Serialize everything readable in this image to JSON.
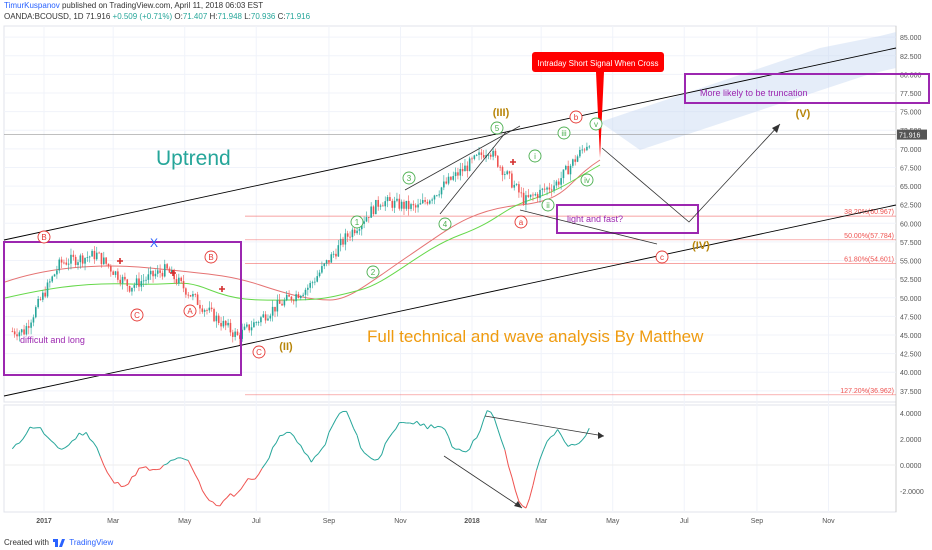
{
  "header": {
    "author": "TimurKuspanov",
    "published": "published on TradingView.com, April 11, 2018 06:03 EST",
    "symbol": "OANDA:BCOUSD, 1D",
    "last": "71.916",
    "change": "+0.509 (+0.71%)",
    "o_label": "O:",
    "o": "71.407",
    "h_label": "H:",
    "h": "71.948",
    "l_label": "L:",
    "l": "70.936",
    "c_label": "C:",
    "c": "71.916"
  },
  "footer": {
    "created_with": "Created with",
    "brand": "TradingView"
  },
  "colors": {
    "up": "#26a69a",
    "down": "#ef5350",
    "trend": "#000000",
    "purple": "#9c27b0",
    "orange": "#ef9b0f",
    "wave_green": "#4caf50",
    "wave_red": "#e53935",
    "fib": "#ef5350",
    "ma_slow": "#e57373",
    "ma_fast": "#66d84a",
    "signal_red": "#ff0000"
  },
  "chart_data": [
    {
      "type": "line",
      "title": "OANDA:BCOUSD, 1D",
      "price_axis_ticks": [
        "85.000",
        "82.500",
        "80.000",
        "77.500",
        "75.000",
        "72.500",
        "70.000",
        "67.500",
        "65.000",
        "62.500",
        "60.000",
        "57.500",
        "55.000",
        "52.500",
        "50.000",
        "47.500",
        "45.000",
        "42.500",
        "40.000",
        "37.500"
      ],
      "time_axis_ticks": [
        "2017",
        "Mar",
        "May",
        "Jul",
        "Sep",
        "Nov",
        "2018",
        "Mar",
        "May",
        "Jul",
        "Sep",
        "Nov"
      ],
      "ylim": [
        36.0,
        86.5
      ],
      "last_price_label": "71.916",
      "series": [
        {
          "name": "",
          "x": [
            "2016-12",
            "2017-01",
            "2017-02",
            "2017-03",
            "2017-04",
            "2017-05",
            "2017-06",
            "2017-07",
            "2017-08",
            "2017-09",
            "2017-10",
            "2017-11",
            "2017-12",
            "2018-01",
            "2018-02",
            "2018-03",
            "2018-04"
          ],
          "values": [
            45.5,
            54.7,
            55.8,
            51.5,
            53.8,
            49.0,
            44.8,
            48.5,
            51.5,
            58.0,
            63.0,
            62.0,
            66.0,
            70.0,
            63.0,
            65.5,
            71.9
          ]
        }
      ],
      "fib_levels": [
        {
          "label": "38.20%(60.967)",
          "value": 60.967
        },
        {
          "label": "50.00%(57.784)",
          "value": 57.784
        },
        {
          "label": "61.80%(54.601)",
          "value": 54.601
        },
        {
          "label": "127.20%(36.962)",
          "value": 36.962
        }
      ],
      "annotations": {
        "uptrend": "Uptrend",
        "full_analysis": "Full technical and wave analysis By Matthew",
        "difficult": "difficult and long",
        "light_fast": "light and fast?",
        "truncation": "More likely to be truncation",
        "signal": "Intraday Short Signal When Cross",
        "wave_III": "(III)",
        "wave_IV": "(IV)",
        "wave_V": "(V)",
        "wave_II": "(II)",
        "w1": "1",
        "w2": "2",
        "w3": "3",
        "w4": "4",
        "w5": "5",
        "wi": "i",
        "wii": "ii",
        "wiii": "iii",
        "wiv": "iv",
        "wv": "v",
        "wa": "a",
        "wb": "b",
        "wc": "c",
        "wA": "A",
        "wB": "B",
        "wC": "C",
        "x": "X"
      }
    },
    {
      "type": "line",
      "title": "",
      "price_axis_ticks": [
        "4.0000",
        "2.0000",
        "0.0000",
        "-2.0000"
      ],
      "ylim": [
        -3.6,
        4.6
      ],
      "series": [
        {
          "name": "",
          "x": [
            "2016-12",
            "2017-01",
            "2017-02",
            "2017-03",
            "2017-04",
            "2017-05",
            "2017-06",
            "2017-07",
            "2017-08",
            "2017-09",
            "2017-10",
            "2017-11",
            "2017-12",
            "2018-01",
            "2018-02",
            "2018-03",
            "2018-04"
          ],
          "values": [
            2.0,
            2.2,
            1.2,
            -2.0,
            1.0,
            -1.6,
            -3.1,
            2.0,
            1.0,
            3.4,
            0.5,
            4.3,
            1.0,
            3.6,
            -2.8,
            2.5,
            2.2
          ]
        }
      ]
    }
  ]
}
